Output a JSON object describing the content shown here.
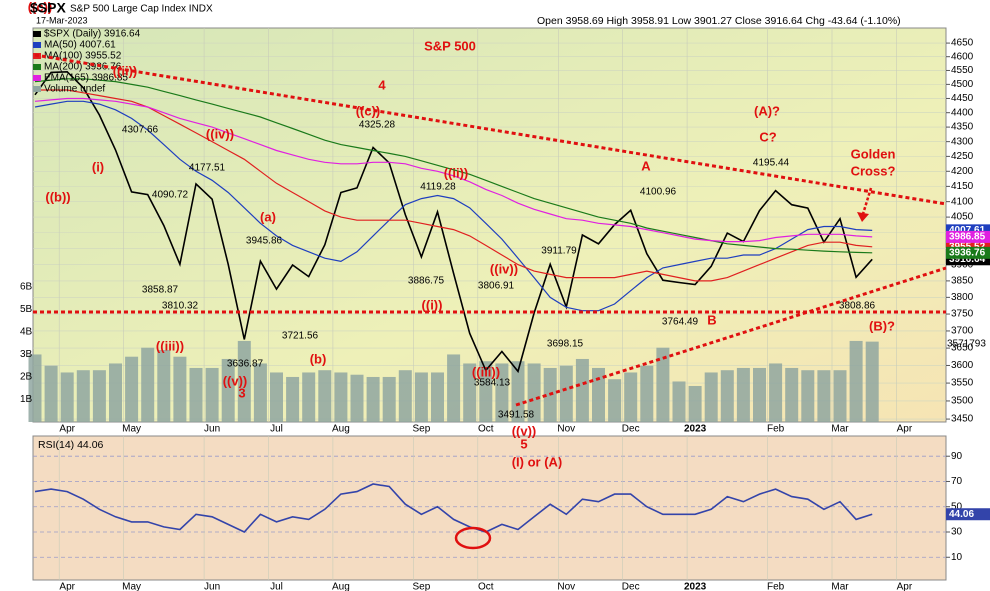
{
  "chart_data": [
    {
      "type": "line",
      "symbol": "$SPX",
      "title": "S&P 500 Large Cap Index INDX",
      "date": "17-Mar-2023",
      "quote": "Open 3958.69 High 3958.91 Low 3901.27 Close 3916.64 Chg -43.64 (-1.10%)",
      "categories": [
        null,
        null,
        "Apr",
        null,
        null,
        null,
        "May",
        null,
        null,
        null,
        null,
        "Jun",
        null,
        null,
        null,
        "Jul",
        null,
        null,
        null,
        "Aug",
        null,
        null,
        null,
        null,
        "Sep",
        null,
        null,
        null,
        "Oct",
        null,
        null,
        null,
        null,
        "Nov",
        null,
        null,
        null,
        "Dec",
        null,
        null,
        null,
        "2023",
        null,
        null,
        null,
        null,
        "Feb",
        null,
        null,
        null,
        "Mar",
        null,
        null,
        null,
        "Apr",
        null,
        null
      ],
      "log_scale": true,
      "ylim": [
        3442,
        4706
      ],
      "yticks": [
        3450,
        3500,
        3550,
        3600,
        3650,
        3700,
        3750,
        3800,
        3850,
        3900,
        3950,
        4000,
        4050,
        4100,
        4150,
        4200,
        4250,
        4300,
        4350,
        4400,
        4450,
        4500,
        4550,
        4600,
        4650
      ],
      "grid": true,
      "volume_ylim": [
        0,
        17.5
      ],
      "volume_ticks": [
        {
          "value": 1,
          "label": "1B"
        },
        {
          "value": 2,
          "label": "2B"
        },
        {
          "value": 3,
          "label": "3B"
        },
        {
          "value": 4,
          "label": "4B"
        },
        {
          "value": 5,
          "label": "5B"
        },
        {
          "value": 6,
          "label": "6B"
        }
      ],
      "series": [
        {
          "name": "$SPX (Daily) 3916.64",
          "color": "#000000",
          "values": [
            4463,
            4543,
            4545,
            4488,
            4392,
            4272,
            4132,
            4123,
            4023,
            3901,
            4158,
            4108,
            3901,
            3675,
            3911,
            3825,
            3899,
            3863,
            3962,
            4130,
            4145,
            4280,
            4228,
            4058,
            3924,
            4067,
            3873,
            3693,
            3586,
            3640,
            3583,
            3753,
            3901,
            3771,
            3993,
            3965,
            4026,
            4072,
            3934,
            3852,
            3845,
            3839,
            3895,
            3999,
            3972,
            4071,
            4136,
            4090,
            4079,
            3970,
            4045,
            3861,
            3916.64,
            null,
            null,
            null,
            null
          ]
        },
        {
          "name": "MA(50) 4007.61",
          "color": "#1f3fbf",
          "values": [
            4420,
            4430,
            4440,
            4440,
            4430,
            4410,
            4380,
            4340,
            4290,
            4240,
            4200,
            4170,
            4130,
            4080,
            4030,
            3990,
            3960,
            3940,
            3920,
            3910,
            3940,
            3990,
            4040,
            4090,
            4110,
            4120,
            4110,
            4080,
            4030,
            3980,
            3920,
            3860,
            3800,
            3770,
            3760,
            3760,
            3780,
            3820,
            3860,
            3890,
            3900,
            3910,
            3920,
            3920,
            3930,
            3930,
            3950,
            3980,
            4010,
            4020,
            4020,
            4010,
            4007.61,
            null,
            null,
            null,
            null
          ]
        },
        {
          "name": "MA(100) 3955.52",
          "color": "#e02020",
          "values": [
            4480,
            4480,
            4480,
            4470,
            4460,
            4450,
            4440,
            4420,
            4390,
            4360,
            4330,
            4300,
            4270,
            4240,
            4200,
            4160,
            4130,
            4100,
            4070,
            4050,
            4040,
            4040,
            4040,
            4040,
            4030,
            4020,
            4010,
            3990,
            3960,
            3930,
            3900,
            3880,
            3870,
            3860,
            3860,
            3860,
            3860,
            3870,
            3880,
            3870,
            3860,
            3850,
            3850,
            3860,
            3880,
            3900,
            3920,
            3940,
            3960,
            3970,
            3970,
            3960,
            3955.52,
            null,
            null,
            null,
            null
          ]
        },
        {
          "name": "MA(200) 3936.76",
          "color": "#1a7a1a",
          "values": [
            4510,
            4515,
            4520,
            4520,
            4515,
            4510,
            4500,
            4490,
            4475,
            4460,
            4445,
            4430,
            4415,
            4400,
            4385,
            4365,
            4345,
            4325,
            4305,
            4290,
            4280,
            4270,
            4260,
            4250,
            4235,
            4220,
            4205,
            4190,
            4170,
            4150,
            4130,
            4110,
            4095,
            4080,
            4065,
            4050,
            4040,
            4030,
            4015,
            4005,
            3995,
            3985,
            3975,
            3965,
            3960,
            3955,
            3950,
            3948,
            3945,
            3942,
            3940,
            3938,
            3936.76,
            null,
            null,
            null,
            null
          ]
        },
        {
          "name": "EMA(165) 3986.85",
          "color": "#e020e0",
          "values": [
            4440,
            4445,
            4450,
            4450,
            4445,
            4440,
            4430,
            4420,
            4400,
            4380,
            4365,
            4350,
            4330,
            4310,
            4290,
            4270,
            4255,
            4240,
            4230,
            4225,
            4225,
            4230,
            4230,
            4225,
            4210,
            4200,
            4185,
            4165,
            4140,
            4120,
            4095,
            4075,
            4060,
            4045,
            4040,
            4030,
            4025,
            4020,
            4010,
            4000,
            3990,
            3980,
            3975,
            3972,
            3972,
            3975,
            3985,
            3990,
            3995,
            3995,
            3995,
            3990,
            3986.85,
            null,
            null,
            null,
            null
          ]
        },
        {
          "name": "Volume undef",
          "type": "bar",
          "axis": "volume",
          "color": "#8fa6a0",
          "last_label": "3571793",
          "values": [
            3.0,
            2.5,
            2.2,
            2.3,
            2.3,
            2.6,
            2.9,
            3.3,
            3.2,
            2.9,
            2.4,
            2.4,
            2.8,
            3.6,
            2.6,
            2.2,
            2.0,
            2.2,
            2.3,
            2.2,
            2.1,
            2.0,
            2.0,
            2.3,
            2.2,
            2.2,
            3.0,
            2.6,
            2.7,
            2.6,
            2.7,
            2.6,
            2.4,
            2.5,
            2.8,
            2.4,
            1.9,
            2.2,
            2.5,
            3.3,
            1.8,
            1.6,
            2.2,
            2.3,
            2.4,
            2.4,
            2.6,
            2.4,
            2.3,
            2.3,
            2.3,
            3.6,
            3.57,
            null,
            null,
            null,
            null
          ]
        }
      ],
      "annotations": [
        "((c))",
        "((ii))",
        "((b))",
        "(i)",
        "((iv))",
        "(a)",
        "((iii))",
        "((v))",
        "3",
        "(b)",
        "((c))",
        "4",
        "S&P 500",
        "((ii))",
        "((i))",
        "((iv))",
        "((iii))",
        "((v))",
        "5",
        "(I) or (A)",
        "A",
        "B",
        "(A)?",
        "C?",
        "Golden",
        "Cross?",
        "(B)?"
      ],
      "price_labels": [
        4307.66,
        4090.72,
        4177.51,
        3858.87,
        3810.32,
        3945.86,
        3721.56,
        3636.87,
        4325.28,
        4119.28,
        3886.75,
        3806.91,
        3584.13,
        3491.58,
        3911.79,
        3698.15,
        4100.96,
        3764.49,
        4195.44,
        3808.86
      ]
    },
    {
      "type": "line",
      "title": "RSI(14) 44.06",
      "categories": [
        null,
        null,
        "Apr",
        null,
        null,
        null,
        "May",
        null,
        null,
        null,
        null,
        "Jun",
        null,
        null,
        null,
        "Jul",
        null,
        null,
        null,
        "Aug",
        null,
        null,
        null,
        null,
        "Sep",
        null,
        null,
        null,
        "Oct",
        null,
        null,
        null,
        null,
        "Nov",
        null,
        null,
        null,
        "Dec",
        null,
        null,
        null,
        "2023",
        null,
        null,
        null,
        null,
        "Feb",
        null,
        null,
        null,
        "Mar",
        null,
        null,
        null,
        "Apr",
        null,
        null
      ],
      "ylim": [
        -8,
        106
      ],
      "yticks": [
        10,
        30,
        50,
        70,
        90
      ],
      "grid": true,
      "series": [
        {
          "color": "#3344aa",
          "values": [
            62,
            64,
            62,
            56,
            48,
            42,
            38,
            38,
            34,
            32,
            44,
            42,
            36,
            30,
            44,
            38,
            42,
            40,
            48,
            60,
            62,
            68,
            66,
            52,
            44,
            50,
            40,
            34,
            30,
            36,
            32,
            42,
            52,
            44,
            56,
            54,
            60,
            60,
            50,
            44,
            44,
            44,
            48,
            58,
            54,
            60,
            64,
            58,
            56,
            48,
            54,
            40,
            44.06,
            null,
            null,
            null,
            null
          ]
        }
      ]
    }
  ]
}
